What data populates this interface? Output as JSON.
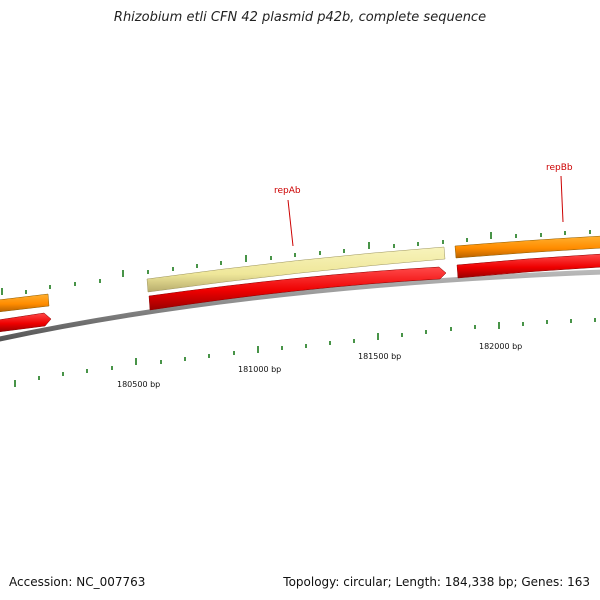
{
  "title": "Rhizobium etli CFN 42 plasmid p42b, complete sequence",
  "accession_text": "Accession: NC_007763",
  "summary_text": "Topology: circular; Length: 184,338 bp; Genes: 163",
  "colors": {
    "backbone": "#7a7a7a",
    "forward_feature_gene": "#ff9800",
    "forward_feature_cds": "#f2eda0",
    "reverse_feature": "#ee1111",
    "tick": "#1a7a1a",
    "label": "#cc0000"
  },
  "scale_labels": [
    "180500 bp",
    "181000 bp",
    "181500 bp",
    "182000 bp"
  ],
  "gene_labels": [
    "repAb",
    "repBb"
  ]
}
